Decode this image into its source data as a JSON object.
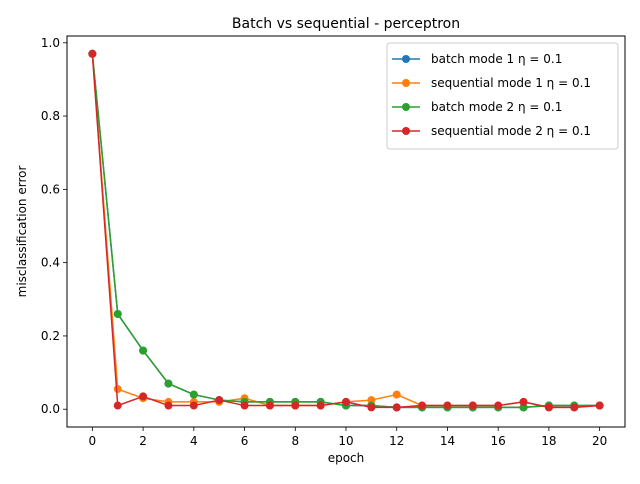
{
  "chart_data": {
    "type": "line",
    "title": "Batch vs sequential - perceptron",
    "xlabel": "epoch",
    "ylabel": "misclassification error",
    "xlim": [
      -1,
      21
    ],
    "ylim": [
      -0.0485,
      1.0185
    ],
    "xticks": [
      "0",
      "2",
      "4",
      "6",
      "8",
      "10",
      "12",
      "14",
      "16",
      "18",
      "20"
    ],
    "yticks": [
      "0.0",
      "0.2",
      "0.4",
      "0.6",
      "0.8",
      "1.0"
    ],
    "grid": false,
    "legend_position": "top-right",
    "x": [
      0,
      1,
      2,
      3,
      4,
      5,
      6,
      7,
      8,
      9,
      10,
      11,
      12,
      13,
      14,
      15,
      16,
      17,
      18,
      19,
      20
    ],
    "series": [
      {
        "name": "batch mode 1 η = 0.1",
        "color": "#1f77b4",
        "values": [
          0.97,
          0.26,
          0.16,
          0.07,
          0.04,
          0.025,
          0.02,
          0.02,
          0.02,
          0.02,
          0.01,
          0.01,
          0.005,
          0.005,
          0.005,
          0.005,
          0.005,
          0.005,
          0.01,
          0.01,
          0.01
        ]
      },
      {
        "name": "sequential mode 1 η = 0.1",
        "color": "#ff7f0e",
        "values": [
          0.97,
          0.055,
          0.03,
          0.02,
          0.02,
          0.02,
          0.03,
          0.01,
          0.01,
          0.01,
          0.02,
          0.025,
          0.04,
          0.01,
          0.01,
          0.01,
          0.01,
          0.02,
          0.005,
          0.005,
          0.01
        ]
      },
      {
        "name": "batch mode 2 η = 0.1",
        "color": "#2ca02c",
        "values": [
          0.97,
          0.26,
          0.16,
          0.07,
          0.04,
          0.025,
          0.02,
          0.02,
          0.02,
          0.02,
          0.01,
          0.01,
          0.005,
          0.005,
          0.005,
          0.005,
          0.005,
          0.005,
          0.01,
          0.01,
          0.01
        ]
      },
      {
        "name": "sequential mode 2 η = 0.1",
        "color": "#d62728",
        "values": [
          0.97,
          0.01,
          0.035,
          0.01,
          0.01,
          0.025,
          0.01,
          0.01,
          0.01,
          0.01,
          0.02,
          0.005,
          0.005,
          0.01,
          0.01,
          0.01,
          0.01,
          0.02,
          0.005,
          0.005,
          0.01
        ]
      }
    ]
  }
}
